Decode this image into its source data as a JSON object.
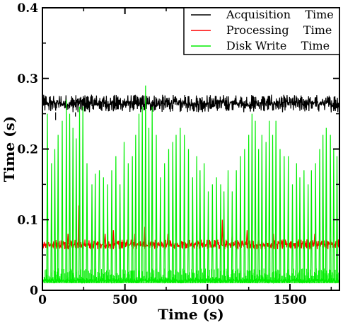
{
  "chart_data": {
    "type": "line",
    "xlabel": "Time (s)",
    "ylabel": "Time  (s)",
    "xlim": [
      0,
      1800
    ],
    "ylim": [
      0,
      0.4
    ],
    "xticks": [
      "0",
      "500",
      "1000",
      "1500"
    ],
    "yticks": [
      "0",
      "0.1",
      "0.2",
      "0.3",
      "0.4"
    ],
    "grid": false,
    "legend_position": "top-right",
    "series": [
      {
        "name": "Acquisition    Time",
        "color": "#000000",
        "description": "dense noisy band",
        "band": [
          0.252,
          0.277
        ],
        "dips": [
          {
            "x": 80,
            "y": 0.241
          },
          {
            "x": 200,
            "y": 0.246
          }
        ]
      },
      {
        "name": "Processing    Time",
        "color": "#ff0000",
        "band": [
          0.058,
          0.072
        ],
        "spikes": [
          {
            "x": 155,
            "y": 0.08
          },
          {
            "x": 220,
            "y": 0.12
          },
          {
            "x": 380,
            "y": 0.08
          },
          {
            "x": 430,
            "y": 0.085
          },
          {
            "x": 560,
            "y": 0.08
          },
          {
            "x": 620,
            "y": 0.09
          },
          {
            "x": 760,
            "y": 0.08
          },
          {
            "x": 1090,
            "y": 0.1
          },
          {
            "x": 1150,
            "y": 0.08
          },
          {
            "x": 1240,
            "y": 0.085
          },
          {
            "x": 1400,
            "y": 0.08
          },
          {
            "x": 1650,
            "y": 0.08
          }
        ]
      },
      {
        "name": "Disk Write    Time",
        "color": "#00ee00",
        "band": [
          0.01,
          0.017
        ],
        "spikes": [
          {
            "x": 30,
            "y": 0.25
          },
          {
            "x": 55,
            "y": 0.18
          },
          {
            "x": 75,
            "y": 0.2
          },
          {
            "x": 95,
            "y": 0.22
          },
          {
            "x": 120,
            "y": 0.24
          },
          {
            "x": 145,
            "y": 0.27
          },
          {
            "x": 165,
            "y": 0.25
          },
          {
            "x": 185,
            "y": 0.23
          },
          {
            "x": 205,
            "y": 0.215
          },
          {
            "x": 225,
            "y": 0.26
          },
          {
            "x": 245,
            "y": 0.26
          },
          {
            "x": 270,
            "y": 0.18
          },
          {
            "x": 300,
            "y": 0.15
          },
          {
            "x": 320,
            "y": 0.165
          },
          {
            "x": 345,
            "y": 0.17
          },
          {
            "x": 370,
            "y": 0.16
          },
          {
            "x": 395,
            "y": 0.15
          },
          {
            "x": 420,
            "y": 0.17
          },
          {
            "x": 445,
            "y": 0.19
          },
          {
            "x": 470,
            "y": 0.15
          },
          {
            "x": 495,
            "y": 0.21
          },
          {
            "x": 520,
            "y": 0.18
          },
          {
            "x": 545,
            "y": 0.19
          },
          {
            "x": 565,
            "y": 0.22
          },
          {
            "x": 585,
            "y": 0.25
          },
          {
            "x": 605,
            "y": 0.26
          },
          {
            "x": 625,
            "y": 0.29
          },
          {
            "x": 645,
            "y": 0.23
          },
          {
            "x": 665,
            "y": 0.26
          },
          {
            "x": 690,
            "y": 0.22
          },
          {
            "x": 715,
            "y": 0.16
          },
          {
            "x": 740,
            "y": 0.18
          },
          {
            "x": 765,
            "y": 0.2
          },
          {
            "x": 790,
            "y": 0.21
          },
          {
            "x": 810,
            "y": 0.22
          },
          {
            "x": 835,
            "y": 0.23
          },
          {
            "x": 860,
            "y": 0.22
          },
          {
            "x": 885,
            "y": 0.2
          },
          {
            "x": 910,
            "y": 0.16
          },
          {
            "x": 935,
            "y": 0.19
          },
          {
            "x": 955,
            "y": 0.17
          },
          {
            "x": 980,
            "y": 0.18
          },
          {
            "x": 1005,
            "y": 0.14
          },
          {
            "x": 1030,
            "y": 0.15
          },
          {
            "x": 1055,
            "y": 0.16
          },
          {
            "x": 1080,
            "y": 0.15
          },
          {
            "x": 1100,
            "y": 0.14
          },
          {
            "x": 1125,
            "y": 0.17
          },
          {
            "x": 1150,
            "y": 0.14
          },
          {
            "x": 1175,
            "y": 0.17
          },
          {
            "x": 1200,
            "y": 0.19
          },
          {
            "x": 1225,
            "y": 0.2
          },
          {
            "x": 1250,
            "y": 0.22
          },
          {
            "x": 1270,
            "y": 0.25
          },
          {
            "x": 1290,
            "y": 0.24
          },
          {
            "x": 1310,
            "y": 0.2
          },
          {
            "x": 1330,
            "y": 0.22
          },
          {
            "x": 1355,
            "y": 0.21
          },
          {
            "x": 1375,
            "y": 0.24
          },
          {
            "x": 1395,
            "y": 0.22
          },
          {
            "x": 1415,
            "y": 0.24
          },
          {
            "x": 1440,
            "y": 0.2
          },
          {
            "x": 1465,
            "y": 0.19
          },
          {
            "x": 1490,
            "y": 0.19
          },
          {
            "x": 1515,
            "y": 0.15
          },
          {
            "x": 1540,
            "y": 0.18
          },
          {
            "x": 1560,
            "y": 0.16
          },
          {
            "x": 1585,
            "y": 0.17
          },
          {
            "x": 1610,
            "y": 0.15
          },
          {
            "x": 1630,
            "y": 0.17
          },
          {
            "x": 1655,
            "y": 0.18
          },
          {
            "x": 1680,
            "y": 0.2
          },
          {
            "x": 1700,
            "y": 0.22
          },
          {
            "x": 1720,
            "y": 0.23
          },
          {
            "x": 1745,
            "y": 0.22
          },
          {
            "x": 1765,
            "y": 0.2
          },
          {
            "x": 1785,
            "y": 0.19
          }
        ]
      }
    ]
  }
}
